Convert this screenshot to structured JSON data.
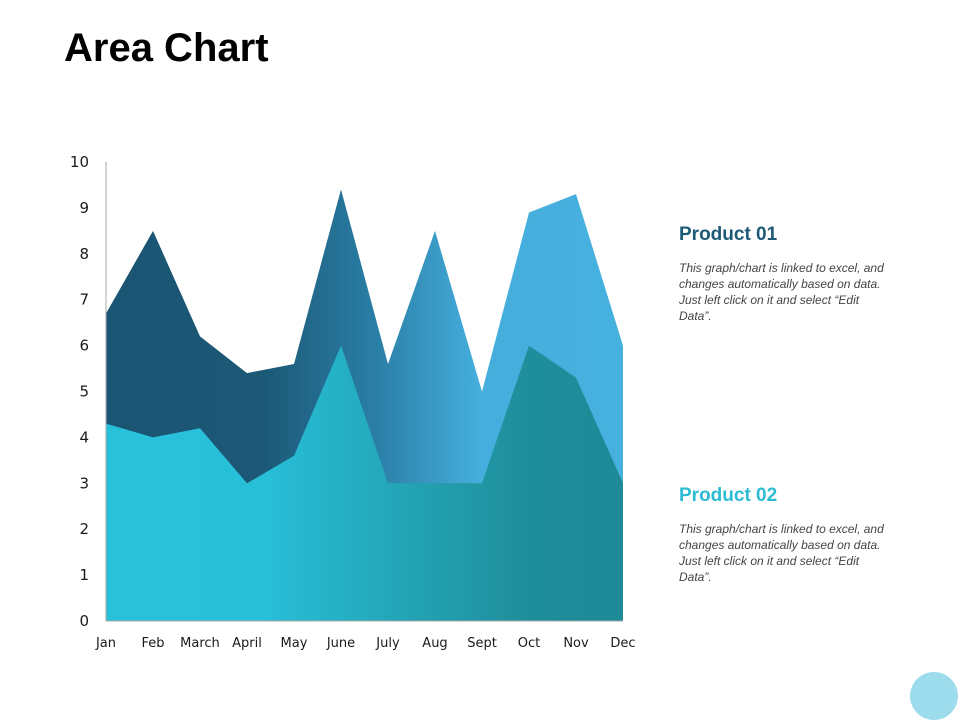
{
  "slide": {
    "title": "Area Chart"
  },
  "legend": [
    {
      "name": "Product 01",
      "color": "#1d5a78",
      "description": "This graph/chart is linked to excel, and changes automatically based on data. Just left click on it and select “Edit Data”."
    },
    {
      "name": "Product 02",
      "color": "#2bbcd4",
      "description": "This graph/chart is linked to excel, and changes automatically based on data. Just left click on it and select “Edit Data”."
    }
  ],
  "chart_data": {
    "type": "area",
    "title": "",
    "xlabel": "",
    "ylabel": "",
    "ylim": [
      0,
      10
    ],
    "yticks": [
      "0",
      "1",
      "2",
      "3",
      "4",
      "5",
      "6",
      "7",
      "8",
      "9",
      "10"
    ],
    "categories": [
      "Jan",
      "Feb",
      "March",
      "April",
      "May",
      "June",
      "July",
      "Aug",
      "Sept",
      "Oct",
      "Nov",
      "Dec"
    ],
    "series": [
      {
        "name": "Product 01",
        "values": [
          6.7,
          8.5,
          6.2,
          5.4,
          5.6,
          9.4,
          5.6,
          8.5,
          5.0,
          8.9,
          9.3,
          6.0
        ]
      },
      {
        "name": "Product 02",
        "values": [
          4.3,
          4.0,
          4.2,
          3.0,
          3.6,
          6.0,
          3.0,
          3.0,
          3.0,
          6.0,
          5.3,
          3.0
        ]
      }
    ],
    "grid": false,
    "legend_position": "right"
  },
  "colors": {
    "product01_gradient": [
      "#1a5674",
      "#1c5876",
      "#2a7ea6",
      "#45aedc",
      "#46b0de"
    ],
    "product02_gradient": [
      "#29c0da",
      "#28bfd9",
      "#23a7b9",
      "#1f8f9c",
      "#1e8997"
    ],
    "axis": "#a8a8a8",
    "corner_circle": "#9ddcec"
  }
}
